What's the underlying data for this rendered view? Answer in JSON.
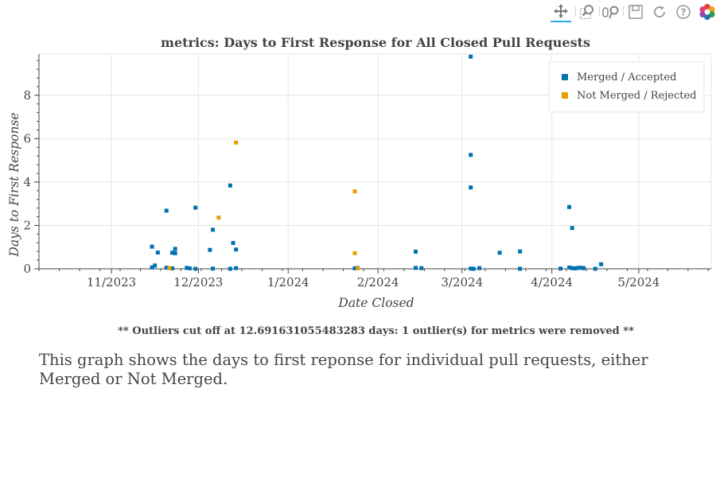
{
  "toolbar": {
    "tools": [
      {
        "name": "pan-tool",
        "icon": "pan-icon",
        "active": true
      },
      {
        "name": "box-zoom-tool",
        "icon": "box-zoom-icon",
        "active": false
      },
      {
        "name": "wheel-zoom-tool",
        "icon": "wheel-zoom-icon",
        "active": false
      },
      {
        "name": "save-tool",
        "icon": "save-icon",
        "active": false
      },
      {
        "name": "reset-tool",
        "icon": "reset-icon",
        "active": false
      },
      {
        "name": "help-tool",
        "icon": "help-icon",
        "active": false
      },
      {
        "name": "bokeh-logo",
        "icon": "bokeh-logo-icon",
        "active": false
      }
    ],
    "accent_color": "#26aae1"
  },
  "chart_data": {
    "type": "scatter",
    "title": "metrics: Days to First Response for All Closed Pull Requests",
    "xlabel": "Date Closed",
    "ylabel": "Days to First Response",
    "xlim": [
      "2023-10-07",
      "2024-05-26"
    ],
    "ylim": [
      0,
      9.9
    ],
    "x_ticks": [
      "2023-11-01",
      "2023-12-01",
      "2024-01-01",
      "2024-02-01",
      "2024-03-01",
      "2024-04-01",
      "2024-05-01"
    ],
    "x_tick_labels": [
      "11/2023",
      "12/2023",
      "1/2024",
      "2/2024",
      "3/2024",
      "4/2024",
      "5/2024"
    ],
    "y_ticks": [
      0,
      2,
      4,
      6,
      8
    ],
    "grid": true,
    "legend_position": "top-right",
    "series": [
      {
        "name": "Merged / Accepted",
        "color": "#0072b2",
        "points": [
          [
            "2023-11-15",
            1.02
          ],
          [
            "2023-11-15",
            0.06
          ],
          [
            "2023-11-16",
            0.15
          ],
          [
            "2023-11-17",
            0.75
          ],
          [
            "2023-11-20",
            2.68
          ],
          [
            "2023-11-20",
            0.05
          ],
          [
            "2023-11-22",
            0.02
          ],
          [
            "2023-11-22",
            0.74
          ],
          [
            "2023-11-23",
            0.92
          ],
          [
            "2023-11-23",
            0.72
          ],
          [
            "2023-11-27",
            0.04
          ],
          [
            "2023-11-28",
            0.02
          ],
          [
            "2023-11-30",
            2.82
          ],
          [
            "2023-11-30",
            0.0
          ],
          [
            "2023-12-05",
            0.87
          ],
          [
            "2023-12-06",
            1.8
          ],
          [
            "2023-12-06",
            0.01
          ],
          [
            "2023-12-12",
            3.84
          ],
          [
            "2023-12-12",
            0.0
          ],
          [
            "2023-12-13",
            1.19
          ],
          [
            "2023-12-14",
            0.89
          ],
          [
            "2023-12-14",
            0.03
          ],
          [
            "2024-01-24",
            0.02
          ],
          [
            "2024-01-25",
            0.04
          ],
          [
            "2024-02-14",
            0.79
          ],
          [
            "2024-02-14",
            0.04
          ],
          [
            "2024-02-16",
            0.03
          ],
          [
            "2024-03-04",
            9.78
          ],
          [
            "2024-03-04",
            5.25
          ],
          [
            "2024-03-04",
            3.75
          ],
          [
            "2024-03-04",
            0.01
          ],
          [
            "2024-03-05",
            0.0
          ],
          [
            "2024-03-07",
            0.03
          ],
          [
            "2024-03-14",
            0.74
          ],
          [
            "2024-03-21",
            0.8
          ],
          [
            "2024-03-21",
            0.0
          ],
          [
            "2024-04-04",
            0.01
          ],
          [
            "2024-04-07",
            2.85
          ],
          [
            "2024-04-07",
            0.06
          ],
          [
            "2024-04-08",
            1.88
          ],
          [
            "2024-04-08",
            0.03
          ],
          [
            "2024-04-09",
            0.02
          ],
          [
            "2024-04-10",
            0.04
          ],
          [
            "2024-04-11",
            0.05
          ],
          [
            "2024-04-12",
            0.03
          ],
          [
            "2024-04-16",
            0.0
          ],
          [
            "2024-04-18",
            0.21
          ]
        ]
      },
      {
        "name": "Not Merged / Rejected",
        "color": "#e69f00",
        "points": [
          [
            "2023-11-21",
            0.03
          ],
          [
            "2023-12-08",
            2.36
          ],
          [
            "2023-12-14",
            5.82
          ],
          [
            "2024-01-24",
            3.57
          ],
          [
            "2024-01-24",
            0.72
          ],
          [
            "2024-01-25",
            0.02
          ]
        ]
      }
    ]
  },
  "footnote": "** Outliers cut off at 12.691631055483283 days: 1 outlier(s) for metrics were removed **",
  "description": "This graph shows the days to first reponse for individual pull requests, either Merged or Not Merged."
}
